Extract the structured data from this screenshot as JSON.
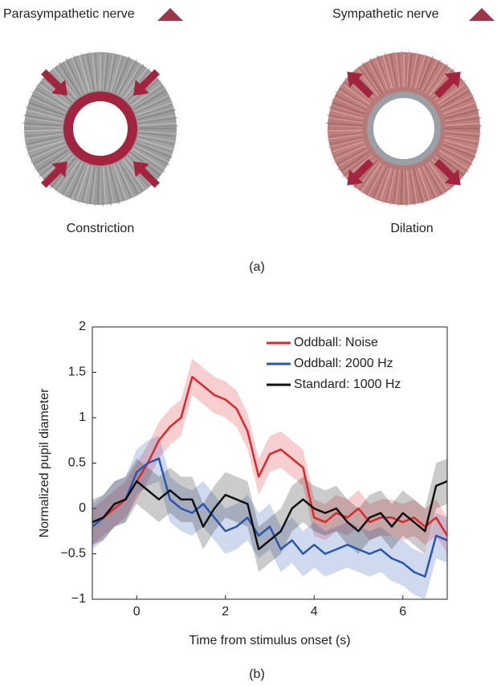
{
  "panel_a": {
    "left_nerve": "Parasympathetic nerve",
    "right_nerve": "Sympathetic nerve",
    "left_caption": "Constriction",
    "right_caption": "Dilation",
    "label": "(a)"
  },
  "panel_b_label": "(b)",
  "chart_data": {
    "type": "line",
    "x_label": "Time from stimulus onset (s)",
    "y_label": "Normalized pupil diameter",
    "x": [
      -1,
      -0.75,
      -0.5,
      -0.25,
      0,
      0.25,
      0.5,
      0.75,
      1,
      1.25,
      1.5,
      1.75,
      2,
      2.25,
      2.5,
      2.75,
      3,
      3.25,
      3.5,
      3.75,
      4,
      4.25,
      4.5,
      4.75,
      5,
      5.25,
      5.5,
      5.75,
      6,
      6.25,
      6.5,
      6.75,
      7
    ],
    "series": [
      {
        "name": "Oddball: Noise",
        "color": "#e0262b",
        "error": 0.2,
        "values": [
          -0.2,
          -0.1,
          0.0,
          0.1,
          0.3,
          0.5,
          0.75,
          0.9,
          1.0,
          1.45,
          1.35,
          1.25,
          1.2,
          1.1,
          0.85,
          0.35,
          0.6,
          0.65,
          0.55,
          0.45,
          -0.1,
          -0.15,
          -0.05,
          -0.1,
          0.0,
          -0.15,
          -0.1,
          -0.1,
          -0.15,
          -0.1,
          -0.2,
          -0.1,
          -0.3
        ]
      },
      {
        "name": "Oddball: 2000 Hz",
        "color": "#2a55b0",
        "error": 0.25,
        "values": [
          -0.2,
          -0.1,
          0.05,
          0.1,
          0.4,
          0.5,
          0.55,
          0.1,
          0.0,
          -0.05,
          0.05,
          -0.1,
          -0.25,
          -0.2,
          -0.1,
          -0.3,
          -0.2,
          -0.45,
          -0.35,
          -0.5,
          -0.4,
          -0.5,
          -0.45,
          -0.4,
          -0.45,
          -0.5,
          -0.45,
          -0.55,
          -0.6,
          -0.7,
          -0.75,
          -0.3,
          -0.35
        ]
      },
      {
        "name": "Standard: 1000 Hz",
        "color": "#111111",
        "error": 0.25,
        "values": [
          -0.15,
          -0.1,
          0.05,
          0.1,
          0.3,
          0.2,
          0.1,
          0.2,
          0.1,
          0.1,
          -0.2,
          0.0,
          0.15,
          0.1,
          0.05,
          -0.45,
          -0.35,
          -0.25,
          0.0,
          0.1,
          0.0,
          -0.05,
          0.0,
          -0.15,
          -0.25,
          -0.1,
          -0.05,
          -0.2,
          -0.05,
          -0.15,
          -0.25,
          0.25,
          0.3
        ]
      }
    ],
    "xlim": [
      -1,
      7
    ],
    "ylim": [
      -1,
      2
    ],
    "xticks": [
      0,
      2,
      4,
      6
    ],
    "yticks": [
      {
        "value": -1,
        "label": "−1"
      },
      {
        "value": -0.5,
        "label": "−0.5"
      },
      0,
      0.5,
      1,
      1.5,
      2
    ],
    "legend": "upper right"
  }
}
